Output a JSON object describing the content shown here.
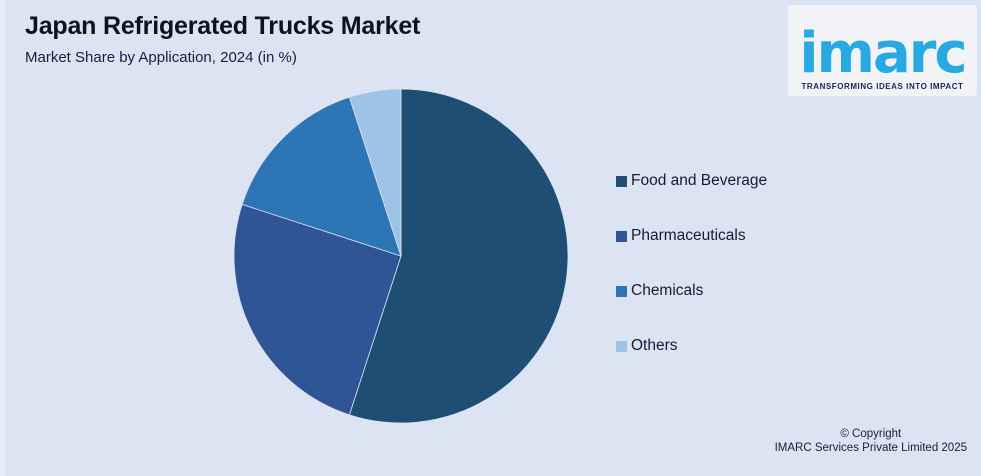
{
  "page": {
    "background": "#dce3f3",
    "edge_strip_color": "#e9edf8"
  },
  "header": {
    "title": "Japan Refrigerated Trucks Market",
    "subtitle": "Market Share by Application, 2024 (in %)"
  },
  "logo": {
    "wordmark": "imarc",
    "tagline": "TRANSFORMING IDEAS INTO IMPACT",
    "wordmark_color": "#29a9e1",
    "tagline_color": "#1b2450",
    "box_color": "#f2f3f7"
  },
  "chart_data": {
    "type": "pie",
    "title": "Japan Refrigerated Trucks Market",
    "subtitle": "Market Share by Application, 2024 (in %)",
    "unit": "%",
    "categories": [
      "Food and Beverage",
      "Pharmaceuticals",
      "Chemicals",
      "Others"
    ],
    "values": [
      55,
      25,
      15,
      5
    ],
    "colors": [
      "#1f4e74",
      "#2f5597",
      "#2e75b6",
      "#9dc3e6"
    ],
    "start_angle_deg": 0,
    "direction": "clockwise",
    "legend_position": "right",
    "data_labels": false,
    "slice_separator_color": "#dce3f3"
  },
  "legend": {
    "items": [
      {
        "label": "Food and Beverage",
        "color": "#1f4e74"
      },
      {
        "label": "Pharmaceuticals",
        "color": "#2f5597"
      },
      {
        "label": "Chemicals",
        "color": "#2e75b6"
      },
      {
        "label": "Others",
        "color": "#9dc3e6"
      }
    ]
  },
  "footer": {
    "line1": "© Copyright",
    "line2": "IMARC Services Private Limited 2025"
  }
}
